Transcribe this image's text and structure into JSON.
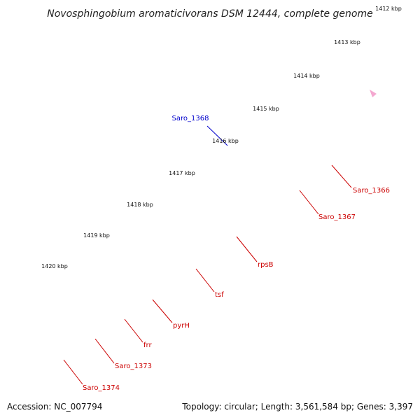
{
  "title": "Novosphingobium aromaticivorans DSM 12444, complete genome",
  "footer": {
    "accession": "Accession: NC_007794",
    "summary": "Topology: circular; Length: 3,561,584 bp; Genes: 3,397"
  },
  "colors": {
    "backbone": "#7a7a7a",
    "cds": "#ee0000",
    "cds_light": "#f08a8a",
    "blue": "#0000dd",
    "cyan": "#1ec8f5",
    "purple": "#7a6ed6",
    "pink": "#f4a8d0",
    "tick": "#2a8a2a"
  },
  "kbp_labels": [
    "1412 kbp",
    "1413 kbp",
    "1414 kbp",
    "1415 kbp",
    "1416 kbp",
    "1417 kbp",
    "1418 kbp",
    "1419 kbp",
    "1420 kbp"
  ],
  "gene_labels": [
    {
      "name": "Saro_1368",
      "color": "#0000cc"
    },
    {
      "name": "Saro_1366",
      "color": "#cc0000"
    },
    {
      "name": "Saro_1367",
      "color": "#cc0000"
    },
    {
      "name": "rpsB",
      "color": "#cc0000"
    },
    {
      "name": "tsf",
      "color": "#cc0000"
    },
    {
      "name": "pyrH",
      "color": "#cc0000"
    },
    {
      "name": "frr",
      "color": "#cc0000"
    },
    {
      "name": "Saro_1373",
      "color": "#cc0000"
    },
    {
      "name": "Saro_1374",
      "color": "#cc0000"
    }
  ]
}
